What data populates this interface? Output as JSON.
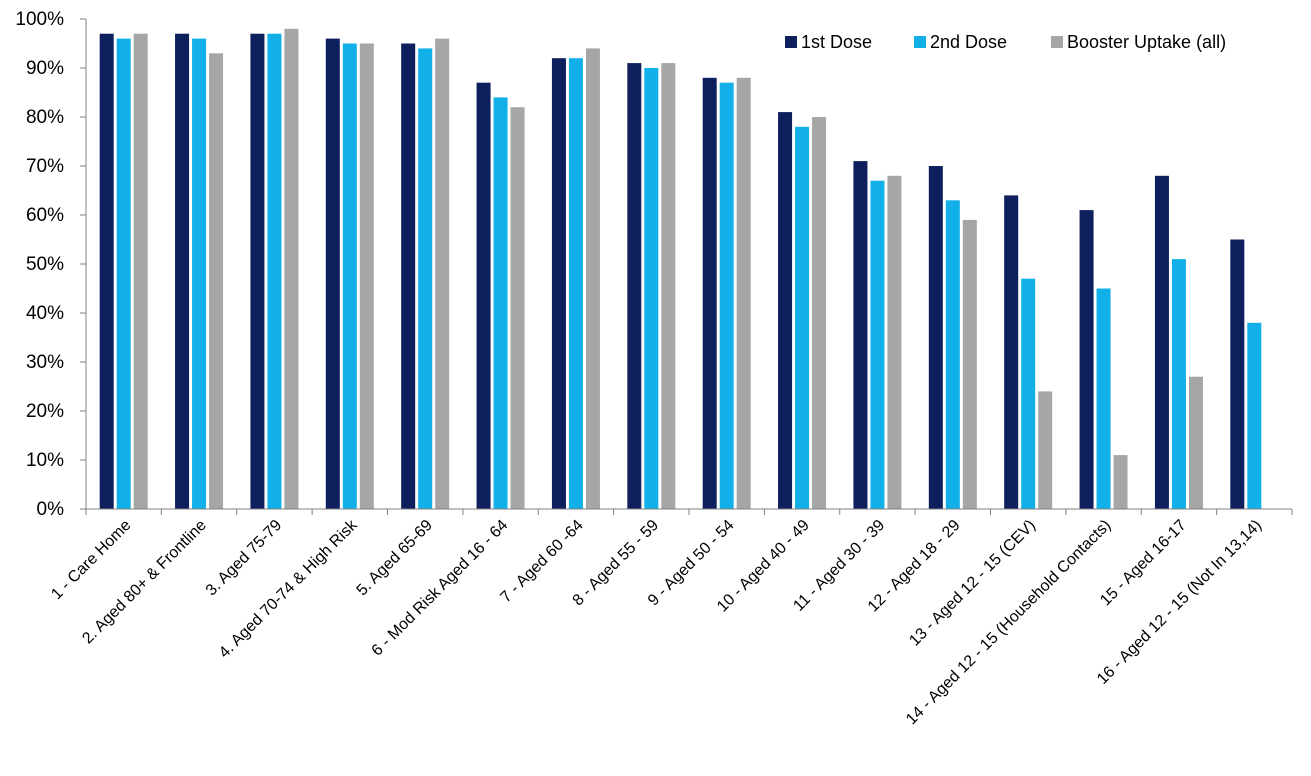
{
  "chart_data": {
    "type": "bar",
    "title": "",
    "xlabel": "",
    "ylabel": "",
    "ylim": [
      0,
      100
    ],
    "y_ticks": [
      "0%",
      "10%",
      "20%",
      "30%",
      "40%",
      "50%",
      "60%",
      "70%",
      "80%",
      "90%",
      "100%"
    ],
    "y_tick_values": [
      0,
      10,
      20,
      30,
      40,
      50,
      60,
      70,
      80,
      90,
      100
    ],
    "grid": false,
    "legend_position": "top-right",
    "categories": [
      "1 - Care Home",
      "2. Aged 80+ & Frontline",
      "3. Aged 75-79",
      "4. Aged 70-74 & High Risk",
      "5. Aged 65-69",
      "6 - Mod Risk Aged 16 - 64",
      "7 - Aged 60 -64",
      "8 - Aged 55 - 59",
      "9 - Aged 50 - 54",
      "10 - Aged 40 - 49",
      "11 - Aged 30 - 39",
      "12 - Aged 18 - 29",
      "13 - Aged 12 - 15 (CEV)",
      "14 - Aged 12 - 15 (Household Contacts)",
      "15 - Aged 16-17",
      "16 - Aged 12 - 15 (Not In 13,14)"
    ],
    "series": [
      {
        "name": "1st Dose",
        "color": "#0d1f5c",
        "values": [
          97,
          97,
          97,
          96,
          95,
          87,
          92,
          91,
          88,
          81,
          71,
          70,
          64,
          61,
          68,
          55
        ]
      },
      {
        "name": "2nd Dose",
        "color": "#12b0e8",
        "values": [
          96,
          96,
          97,
          95,
          94,
          84,
          92,
          90,
          87,
          78,
          67,
          63,
          47,
          45,
          51,
          38
        ]
      },
      {
        "name": "Booster Uptake (all)",
        "color": "#a6a6a6",
        "values": [
          97,
          93,
          98,
          95,
          96,
          82,
          94,
          91,
          88,
          80,
          68,
          59,
          24,
          11,
          27,
          null
        ]
      }
    ]
  }
}
